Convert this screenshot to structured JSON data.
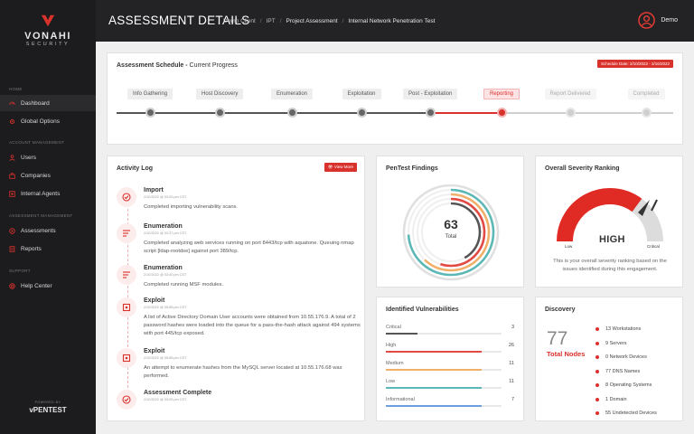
{
  "brand": {
    "name": "VONAHI",
    "sub": "SECURITY"
  },
  "sidebar": {
    "sections": [
      "HOME",
      "ACCOUNT MANAGEMENT",
      "ASSESSMENT MANAGEMENT",
      "SUPPORT"
    ],
    "items": [
      {
        "label": "Dashboard",
        "icon": "dashboard-icon",
        "active": true
      },
      {
        "label": "Global Options",
        "icon": "gear-icon"
      },
      {
        "label": "Users",
        "icon": "user-icon"
      },
      {
        "label": "Companies",
        "icon": "companies-icon"
      },
      {
        "label": "Internal Agents",
        "icon": "agent-icon"
      },
      {
        "label": "Assessments",
        "icon": "assessments-icon"
      },
      {
        "label": "Reports",
        "icon": "reports-icon"
      },
      {
        "label": "Help Center",
        "icon": "help-icon"
      }
    ],
    "powered_by": "POWERED BY",
    "powered_brand": "vPENTEST"
  },
  "header": {
    "title": "ASSESSMENT DETAILS",
    "breadcrumb": [
      "Demo Client",
      "IPT",
      "Project Assessment",
      "Internal Network Penetration Test"
    ],
    "user": "Demo"
  },
  "schedule": {
    "title": "Assessment Schedule -",
    "subtitle": "Current Progress",
    "date": "Schedule Date: 2/10/2022 - 2/16/2022",
    "stages": [
      {
        "label": "Info Gathering",
        "status": "done"
      },
      {
        "label": "Host Discovery",
        "status": "done"
      },
      {
        "label": "Enumeration",
        "status": "done"
      },
      {
        "label": "Exploitation",
        "status": "done"
      },
      {
        "label": "Post - Exploitation",
        "status": "done"
      },
      {
        "label": "Reporting",
        "status": "current"
      },
      {
        "label": "Report Delivered",
        "status": "todo"
      },
      {
        "label": "Completed",
        "status": "todo"
      }
    ]
  },
  "activity": {
    "title": "Activity Log",
    "view_more": "View More",
    "items": [
      {
        "title": "Import",
        "date": "2/10/2022 @ 03:00 pm CST",
        "text": "Completed importing vulnerability scans."
      },
      {
        "title": "Enumeration",
        "date": "2/10/2022 @ 03:37 pm CST",
        "text": "Completed analyzing web services running on port 8443/tcp with aquatone. Queuing nmap script [ldap-rootdse] against port 389/tcp."
      },
      {
        "title": "Enumeration",
        "date": "2/10/2022 @ 03:40 pm CST",
        "text": "Completed running MSF modules."
      },
      {
        "title": "Exploit",
        "date": "2/10/2022 @ 05:58 pm CST",
        "text": "A list of Active Directory Domain User accounts were obtained from 10.55.176.9. A total of 2 password hashes were loaded into the queue for a pass-the-hash attack against 494 systems with port 445/tcp exposed."
      },
      {
        "title": "Exploit",
        "date": "2/10/2022 @ 05:58 pm CST",
        "text": "An attempt to enumerate hashes from the MySQL server located at 10.55.176.68 was performed."
      },
      {
        "title": "Assessment Complete",
        "date": "2/10/2022 @ 03:09 pm CST",
        "text": ""
      }
    ]
  },
  "findings": {
    "title": "PenTest Findings",
    "total": "63",
    "total_label": "Total",
    "rings": [
      {
        "color": "#e0e0e0",
        "value": 1
      },
      {
        "color": "#5cb8b6",
        "value": 0.74
      },
      {
        "color": "#f0b06a",
        "value": 0.62
      },
      {
        "color": "#e24a44",
        "value": 0.55
      },
      {
        "color": "#555555",
        "value": 0.42
      }
    ]
  },
  "severity": {
    "title": "Overall Severity Ranking",
    "value": "HIGH",
    "low": "Low",
    "critical": "Critical",
    "text": "This is your overall severity ranking based on the issues identified during this engagement."
  },
  "vulns": {
    "title": "Identified Vulnerabilities",
    "items": [
      {
        "label": "Critical",
        "value": "3",
        "pct": 0.27,
        "color": "#555555"
      },
      {
        "label": "High",
        "value": "26",
        "pct": 0.83,
        "color": "#e24a44"
      },
      {
        "label": "Medium",
        "value": "11",
        "pct": 0.83,
        "color": "#f0b06a"
      },
      {
        "label": "Low",
        "value": "11",
        "pct": 0.83,
        "color": "#5cb8b6"
      },
      {
        "label": "Informational",
        "value": "7",
        "pct": 0.83,
        "color": "#6aa0e0"
      }
    ]
  },
  "discovery": {
    "title": "Discovery",
    "count": "77",
    "count_label": "Total Nodes",
    "items": [
      "13 Workstations",
      "9 Servers",
      "0 Network Devices",
      "77 DNS Names",
      "8 Operating Systems",
      "1 Domain",
      "55 Undetected Devices"
    ]
  }
}
